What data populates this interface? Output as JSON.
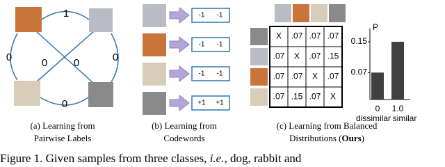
{
  "panel_a": {
    "edge_labels": [
      "1",
      "0",
      "0",
      "0",
      "0",
      "0"
    ],
    "caption": [
      "(a) Learning from",
      "Pairwise Labels"
    ]
  },
  "panel_b": {
    "codewords": [
      [
        "-1",
        "-1"
      ],
      [
        "-1",
        "-1"
      ],
      [
        "-1",
        "-1"
      ],
      [
        "+1",
        "+1"
      ]
    ],
    "caption": [
      "(b) Learning from",
      "Codewords"
    ]
  },
  "panel_c": {
    "matrix": [
      [
        "X",
        ".07",
        ".07",
        ".07"
      ],
      [
        ".07",
        "X",
        ".07",
        ".15"
      ],
      [
        ".07",
        ".07",
        "X",
        ".07"
      ],
      [
        ".07",
        ".15",
        ".07",
        "X"
      ]
    ],
    "bar_chart": {
      "type": "bar",
      "y_label": "P",
      "categories": [
        "0",
        "1.0"
      ],
      "category_names": [
        "dissimilar",
        "similar"
      ],
      "values": [
        0.07,
        0.15
      ],
      "color": "#404040",
      "ylim": [
        0,
        0.17
      ],
      "yticks": [
        0.07,
        0.15
      ]
    },
    "caption": [
      "(c) Learning from Balanced",
      "Distributions (",
      "Ours",
      ")"
    ]
  },
  "figure_caption": [
    "Figure 1.  Given samples from three classes, ",
    "i.e.",
    ", dog, rabbit and"
  ]
}
